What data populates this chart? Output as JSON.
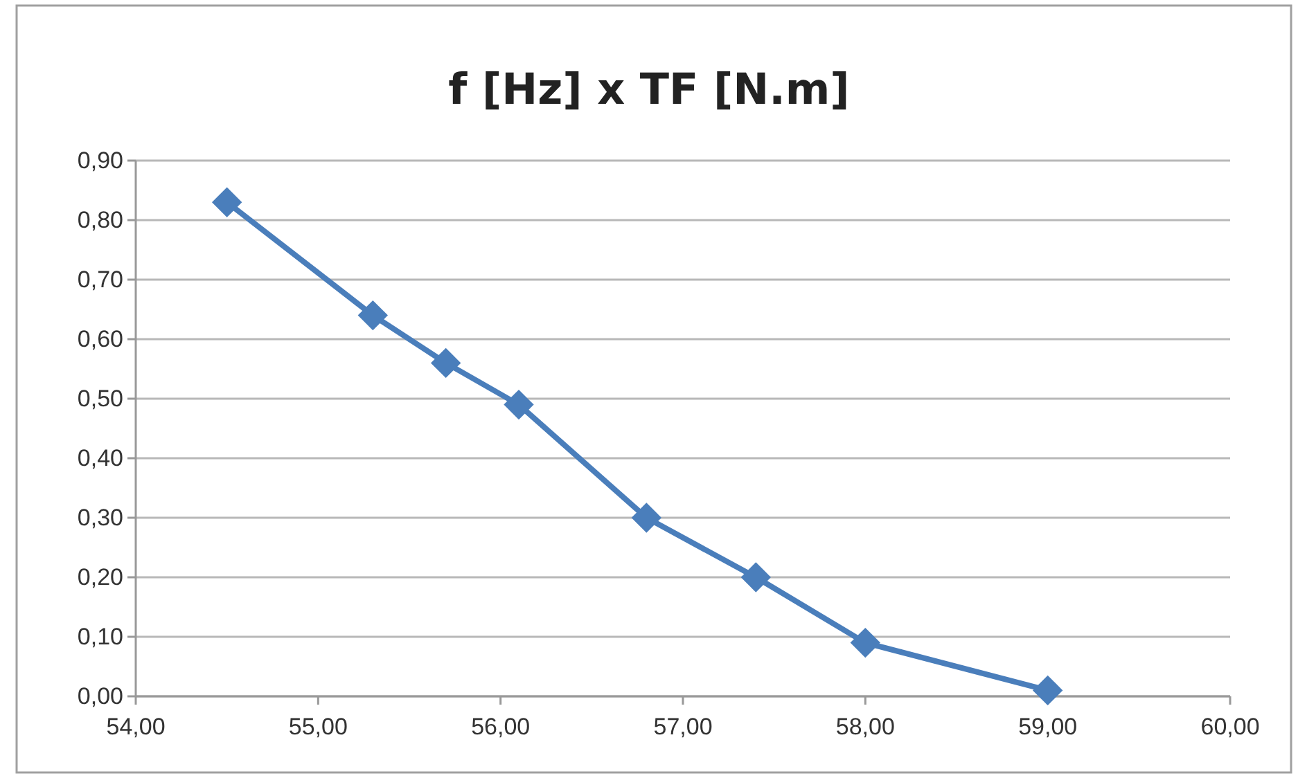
{
  "chart_data": {
    "type": "line",
    "title": "f [Hz] x TF [N.m]",
    "x": [
      54.5,
      55.3,
      55.7,
      56.1,
      56.8,
      57.4,
      58.0,
      59.0
    ],
    "series": [
      {
        "color": "#4a7ebb",
        "values": [
          0.83,
          0.64,
          0.56,
          0.49,
          0.3,
          0.2,
          0.09,
          0.01
        ]
      }
    ],
    "xlim": [
      54,
      60
    ],
    "xticks": [
      {
        "value": 54,
        "label": "54,00"
      },
      {
        "value": 55,
        "label": "55,00"
      },
      {
        "value": 56,
        "label": "56,00"
      },
      {
        "value": 57,
        "label": "57,00"
      },
      {
        "value": 58,
        "label": "58,00"
      },
      {
        "value": 59,
        "label": "59,00"
      },
      {
        "value": 60,
        "label": "60,00"
      }
    ],
    "ylim": [
      0,
      0.9
    ],
    "yticks": [
      {
        "value": 0,
        "label": "0,00"
      },
      {
        "value": 0.1,
        "label": "0,10"
      },
      {
        "value": 0.2,
        "label": "0,20"
      },
      {
        "value": 0.3,
        "label": "0,30"
      },
      {
        "value": 0.4,
        "label": "0,40"
      },
      {
        "value": 0.5,
        "label": "0,50"
      },
      {
        "value": 0.6,
        "label": "0,60"
      },
      {
        "value": 0.7,
        "label": "0,70"
      },
      {
        "value": 0.8,
        "label": "0,80"
      },
      {
        "value": 0.9,
        "label": "0,90"
      }
    ],
    "grid": "y",
    "marker": "diamond",
    "line_style": "solid"
  }
}
